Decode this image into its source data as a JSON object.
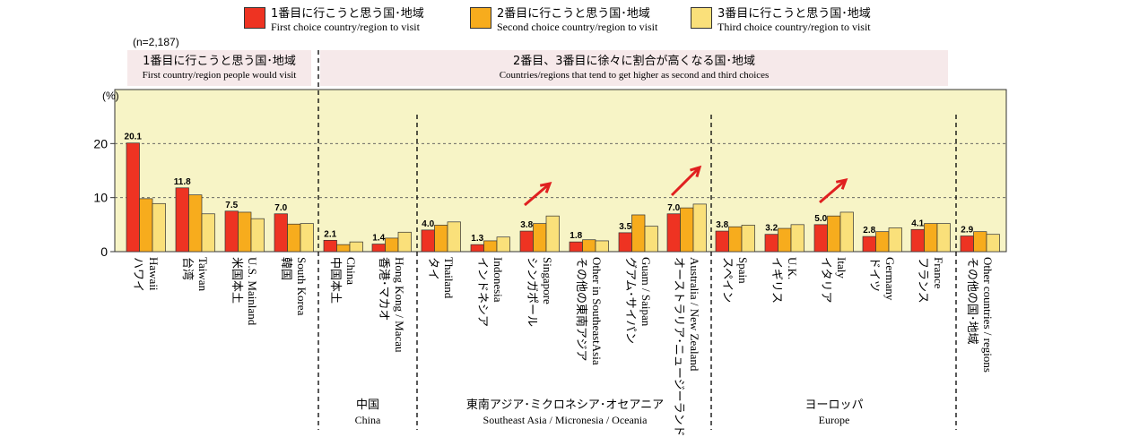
{
  "legend": [
    {
      "jp": "1番目に行こうと思う国･地域",
      "en": "First choice country/region to visit",
      "color": "#ee3322"
    },
    {
      "jp": "2番目に行こうと思う国･地域",
      "en": "Second choice country/region to visit",
      "color": "#f7ac1d"
    },
    {
      "jp": "3番目に行こうと思う国･地域",
      "en": "Third choice country/region to visit",
      "color": "#fae07a"
    }
  ],
  "note": "(n=2,187)",
  "bands": [
    {
      "jp": "1番目に行こうと思う国･地域",
      "en": "First country/region people would visit"
    },
    {
      "jp": "2番目、3番目に徐々に割合が高くなる国･地域",
      "en": "Countries/regions that tend to get higher as second and third choices"
    }
  ],
  "regions": [
    {
      "jp": "中国",
      "en": "China"
    },
    {
      "jp": "東南アジア･ミクロネシア･オセアニア",
      "en": "Southeast Asia / Micronesia / Oceania"
    },
    {
      "jp": "ヨーロッパ",
      "en": "Europe"
    }
  ],
  "chart_data": {
    "type": "bar",
    "ylabel": "(%)",
    "ylim": [
      0,
      30
    ],
    "yticks": [
      0,
      10,
      20
    ],
    "grid": true,
    "plot_background": "#f7f4c6",
    "categories": [
      {
        "jp": "ハワイ",
        "en": "Hawaii"
      },
      {
        "jp": "台湾",
        "en": "Taiwan"
      },
      {
        "jp": "米国本土",
        "en": "U.S. Mainland"
      },
      {
        "jp": "韓国",
        "en": "South Korea"
      },
      {
        "jp": "中国本土",
        "en": "China"
      },
      {
        "jp": "香港･マカオ",
        "en": "Hong Kong / Macau"
      },
      {
        "jp": "タイ",
        "en": "Thailand"
      },
      {
        "jp": "インドネシア",
        "en": "Indonesia"
      },
      {
        "jp": "シンガポール",
        "en": "Singapore"
      },
      {
        "jp": "その他の東南アジア",
        "en": "Other in SoutheastAsia"
      },
      {
        "jp": "グアム･サイパン",
        "en": "Guam / Saipan"
      },
      {
        "jp": "オーストラリア･ニュージーランド",
        "en": "Australia / New Zealand"
      },
      {
        "jp": "スペイン",
        "en": "Spain"
      },
      {
        "jp": "イギリス",
        "en": "U.K."
      },
      {
        "jp": "イタリア",
        "en": "Italy"
      },
      {
        "jp": "ドイツ",
        "en": "Germany"
      },
      {
        "jp": "フランス",
        "en": "France"
      },
      {
        "jp": "その他の国･地域",
        "en": "Other countries / regions"
      }
    ],
    "series": [
      {
        "name": "1番目に行こうと思う国･地域",
        "color": "#ee3322",
        "values": [
          20.1,
          11.8,
          7.5,
          7.0,
          2.1,
          1.4,
          4.0,
          1.3,
          3.8,
          1.8,
          3.5,
          7.0,
          3.8,
          3.2,
          5.0,
          2.8,
          4.1,
          2.9
        ]
      },
      {
        "name": "2番目に行こうと思う国･地域",
        "color": "#f7ac1d",
        "values": [
          9.8,
          10.5,
          7.3,
          5.1,
          1.3,
          2.5,
          4.9,
          2.0,
          5.2,
          2.2,
          6.8,
          8.1,
          4.6,
          4.3,
          6.6,
          3.7,
          5.2,
          3.7
        ]
      },
      {
        "name": "3番目に行こうと思う国･地域",
        "color": "#fae07a",
        "values": [
          8.9,
          7.0,
          6.1,
          5.2,
          1.8,
          3.6,
          5.5,
          2.7,
          6.6,
          2.0,
          4.7,
          8.8,
          4.9,
          5.0,
          7.3,
          4.4,
          5.2,
          3.2
        ]
      }
    ],
    "data_labels": [
      "20.1",
      "11.8",
      "7.5",
      "7.0",
      "2.1",
      "1.4",
      "4.0",
      "1.3",
      "3.8",
      "1.8",
      "3.5",
      "7.0",
      "3.8",
      "3.2",
      "5.0",
      "2.8",
      "4.1",
      "2.9"
    ],
    "arrow_color": "#e02020"
  }
}
